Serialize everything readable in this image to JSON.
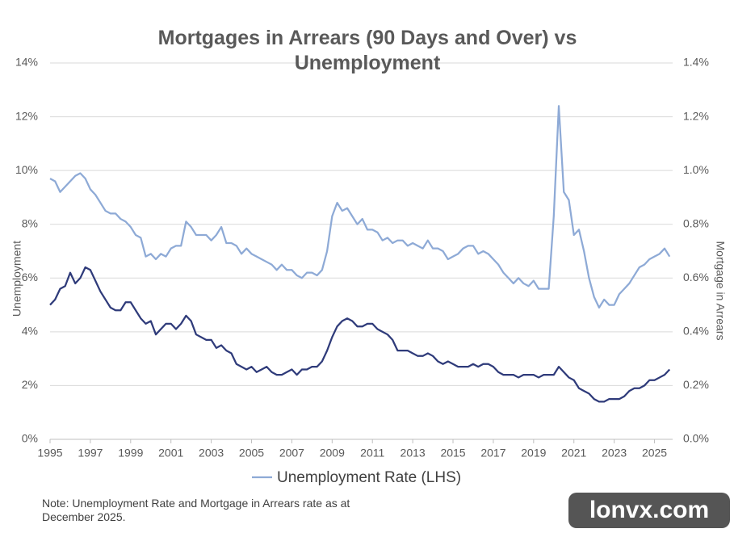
{
  "chart_data": {
    "type": "line",
    "title": "Mortgages in Arrears (90 Days and Over) vs Unemployment",
    "ylabel": "Unemployment",
    "y2label": "Mortgage in Arrears",
    "note": "Note: Unemployment Rate and Mortgage  in Arrears rate as at December 2025.",
    "watermark": "lonvx.com",
    "xlim": [
      1995,
      2025.9
    ],
    "xticks": [
      1995,
      1997,
      1999,
      2001,
      2003,
      2005,
      2007,
      2009,
      2011,
      2013,
      2015,
      2017,
      2019,
      2021,
      2023,
      2025
    ],
    "ylim": [
      0,
      14
    ],
    "yticks": [
      {
        "value": 0,
        "label": "0%"
      },
      {
        "value": 2,
        "label": "2%"
      },
      {
        "value": 4,
        "label": "4%"
      },
      {
        "value": 6,
        "label": "6%"
      },
      {
        "value": 8,
        "label": "8%"
      },
      {
        "value": 10,
        "label": "10%"
      },
      {
        "value": 12,
        "label": "12%"
      },
      {
        "value": 14,
        "label": "14%"
      }
    ],
    "y2lim": [
      0,
      1.4
    ],
    "y2ticks": [
      {
        "value": 0,
        "label": "0.0%"
      },
      {
        "value": 0.2,
        "label": "0.2%"
      },
      {
        "value": 0.4,
        "label": "0.4%"
      },
      {
        "value": 0.6,
        "label": "0.6%"
      },
      {
        "value": 0.8,
        "label": "0.8%"
      },
      {
        "value": 1.0,
        "label": "1.0%"
      },
      {
        "value": 1.2,
        "label": "1.2%"
      },
      {
        "value": 1.4,
        "label": "1.4%"
      }
    ],
    "grid": true,
    "x": [
      1995,
      1995.25,
      1995.5,
      1995.75,
      1996,
      1996.25,
      1996.5,
      1996.75,
      1997,
      1997.25,
      1997.5,
      1997.75,
      1998,
      1998.25,
      1998.5,
      1998.75,
      1999,
      1999.25,
      1999.5,
      1999.75,
      2000,
      2000.25,
      2000.5,
      2000.75,
      2001,
      2001.25,
      2001.5,
      2001.75,
      2002,
      2002.25,
      2002.5,
      2002.75,
      2003,
      2003.25,
      2003.5,
      2003.75,
      2004,
      2004.25,
      2004.5,
      2004.75,
      2005,
      2005.25,
      2005.5,
      2005.75,
      2006,
      2006.25,
      2006.5,
      2006.75,
      2007,
      2007.25,
      2007.5,
      2007.75,
      2008,
      2008.25,
      2008.5,
      2008.75,
      2009,
      2009.25,
      2009.5,
      2009.75,
      2010,
      2010.25,
      2010.5,
      2010.75,
      2011,
      2011.25,
      2011.5,
      2011.75,
      2012,
      2012.25,
      2012.5,
      2012.75,
      2013,
      2013.25,
      2013.5,
      2013.75,
      2014,
      2014.25,
      2014.5,
      2014.75,
      2015,
      2015.25,
      2015.5,
      2015.75,
      2016,
      2016.25,
      2016.5,
      2016.75,
      2017,
      2017.25,
      2017.5,
      2017.75,
      2018,
      2018.25,
      2018.5,
      2018.75,
      2019,
      2019.25,
      2019.5,
      2019.75,
      2020,
      2020.25,
      2020.5,
      2020.75,
      2021,
      2021.25,
      2021.5,
      2021.75,
      2022,
      2022.25,
      2022.5,
      2022.75,
      2023,
      2023.25,
      2023.5,
      2023.75,
      2024,
      2024.25,
      2024.5,
      2024.75,
      2025,
      2025.25,
      2025.5,
      2025.75
    ],
    "series": [
      {
        "name": "Unemployment Rate (LHS)",
        "color": "#8eaad6",
        "axis": "y",
        "values": [
          9.7,
          9.6,
          9.2,
          9.4,
          9.6,
          9.8,
          9.9,
          9.7,
          9.3,
          9.1,
          8.8,
          8.5,
          8.4,
          8.4,
          8.2,
          8.1,
          7.9,
          7.6,
          7.5,
          6.8,
          6.9,
          6.7,
          6.9,
          6.8,
          7.1,
          7.2,
          7.2,
          8.1,
          7.9,
          7.6,
          7.6,
          7.6,
          7.4,
          7.6,
          7.9,
          7.3,
          7.3,
          7.2,
          6.9,
          7.1,
          6.9,
          6.8,
          6.7,
          6.6,
          6.5,
          6.3,
          6.5,
          6.3,
          6.3,
          6.1,
          6.0,
          6.2,
          6.2,
          6.1,
          6.3,
          7.0,
          8.3,
          8.8,
          8.5,
          8.6,
          8.3,
          8.0,
          8.2,
          7.8,
          7.8,
          7.7,
          7.4,
          7.5,
          7.3,
          7.4,
          7.4,
          7.2,
          7.3,
          7.2,
          7.1,
          7.4,
          7.1,
          7.1,
          7.0,
          6.7,
          6.8,
          6.9,
          7.1,
          7.2,
          7.2,
          6.9,
          7.0,
          6.9,
          6.7,
          6.5,
          6.2,
          6.0,
          5.8,
          6.0,
          5.8,
          5.7,
          5.9,
          5.6,
          5.6,
          5.6,
          8.3,
          12.4,
          9.2,
          8.9,
          7.6,
          7.8,
          7.0,
          6.0,
          5.3,
          4.9,
          5.2,
          5.0,
          5.0,
          5.4,
          5.6,
          5.8,
          6.1,
          6.4,
          6.5,
          6.7,
          6.8,
          6.9,
          7.1,
          6.8
        ]
      },
      {
        "color": "#2f3b7a",
        "axis": "y2",
        "values": [
          0.5,
          0.52,
          0.56,
          0.57,
          0.62,
          0.58,
          0.6,
          0.64,
          0.63,
          0.59,
          0.55,
          0.52,
          0.49,
          0.48,
          0.48,
          0.51,
          0.51,
          0.48,
          0.45,
          0.43,
          0.44,
          0.39,
          0.41,
          0.43,
          0.43,
          0.41,
          0.43,
          0.46,
          0.44,
          0.39,
          0.38,
          0.37,
          0.37,
          0.34,
          0.35,
          0.33,
          0.32,
          0.28,
          0.27,
          0.26,
          0.27,
          0.25,
          0.26,
          0.27,
          0.25,
          0.24,
          0.24,
          0.25,
          0.26,
          0.24,
          0.26,
          0.26,
          0.27,
          0.27,
          0.29,
          0.33,
          0.38,
          0.42,
          0.44,
          0.45,
          0.44,
          0.42,
          0.42,
          0.43,
          0.43,
          0.41,
          0.4,
          0.39,
          0.37,
          0.33,
          0.33,
          0.33,
          0.32,
          0.31,
          0.31,
          0.32,
          0.31,
          0.29,
          0.28,
          0.29,
          0.28,
          0.27,
          0.27,
          0.27,
          0.28,
          0.27,
          0.28,
          0.28,
          0.27,
          0.25,
          0.24,
          0.24,
          0.24,
          0.23,
          0.24,
          0.24,
          0.24,
          0.23,
          0.24,
          0.24,
          0.24,
          0.27,
          0.25,
          0.23,
          0.22,
          0.19,
          0.18,
          0.17,
          0.15,
          0.14,
          0.14,
          0.15,
          0.15,
          0.15,
          0.16,
          0.18,
          0.19,
          0.19,
          0.2,
          0.22,
          0.22,
          0.23,
          0.24,
          0.26
        ]
      }
    ]
  }
}
